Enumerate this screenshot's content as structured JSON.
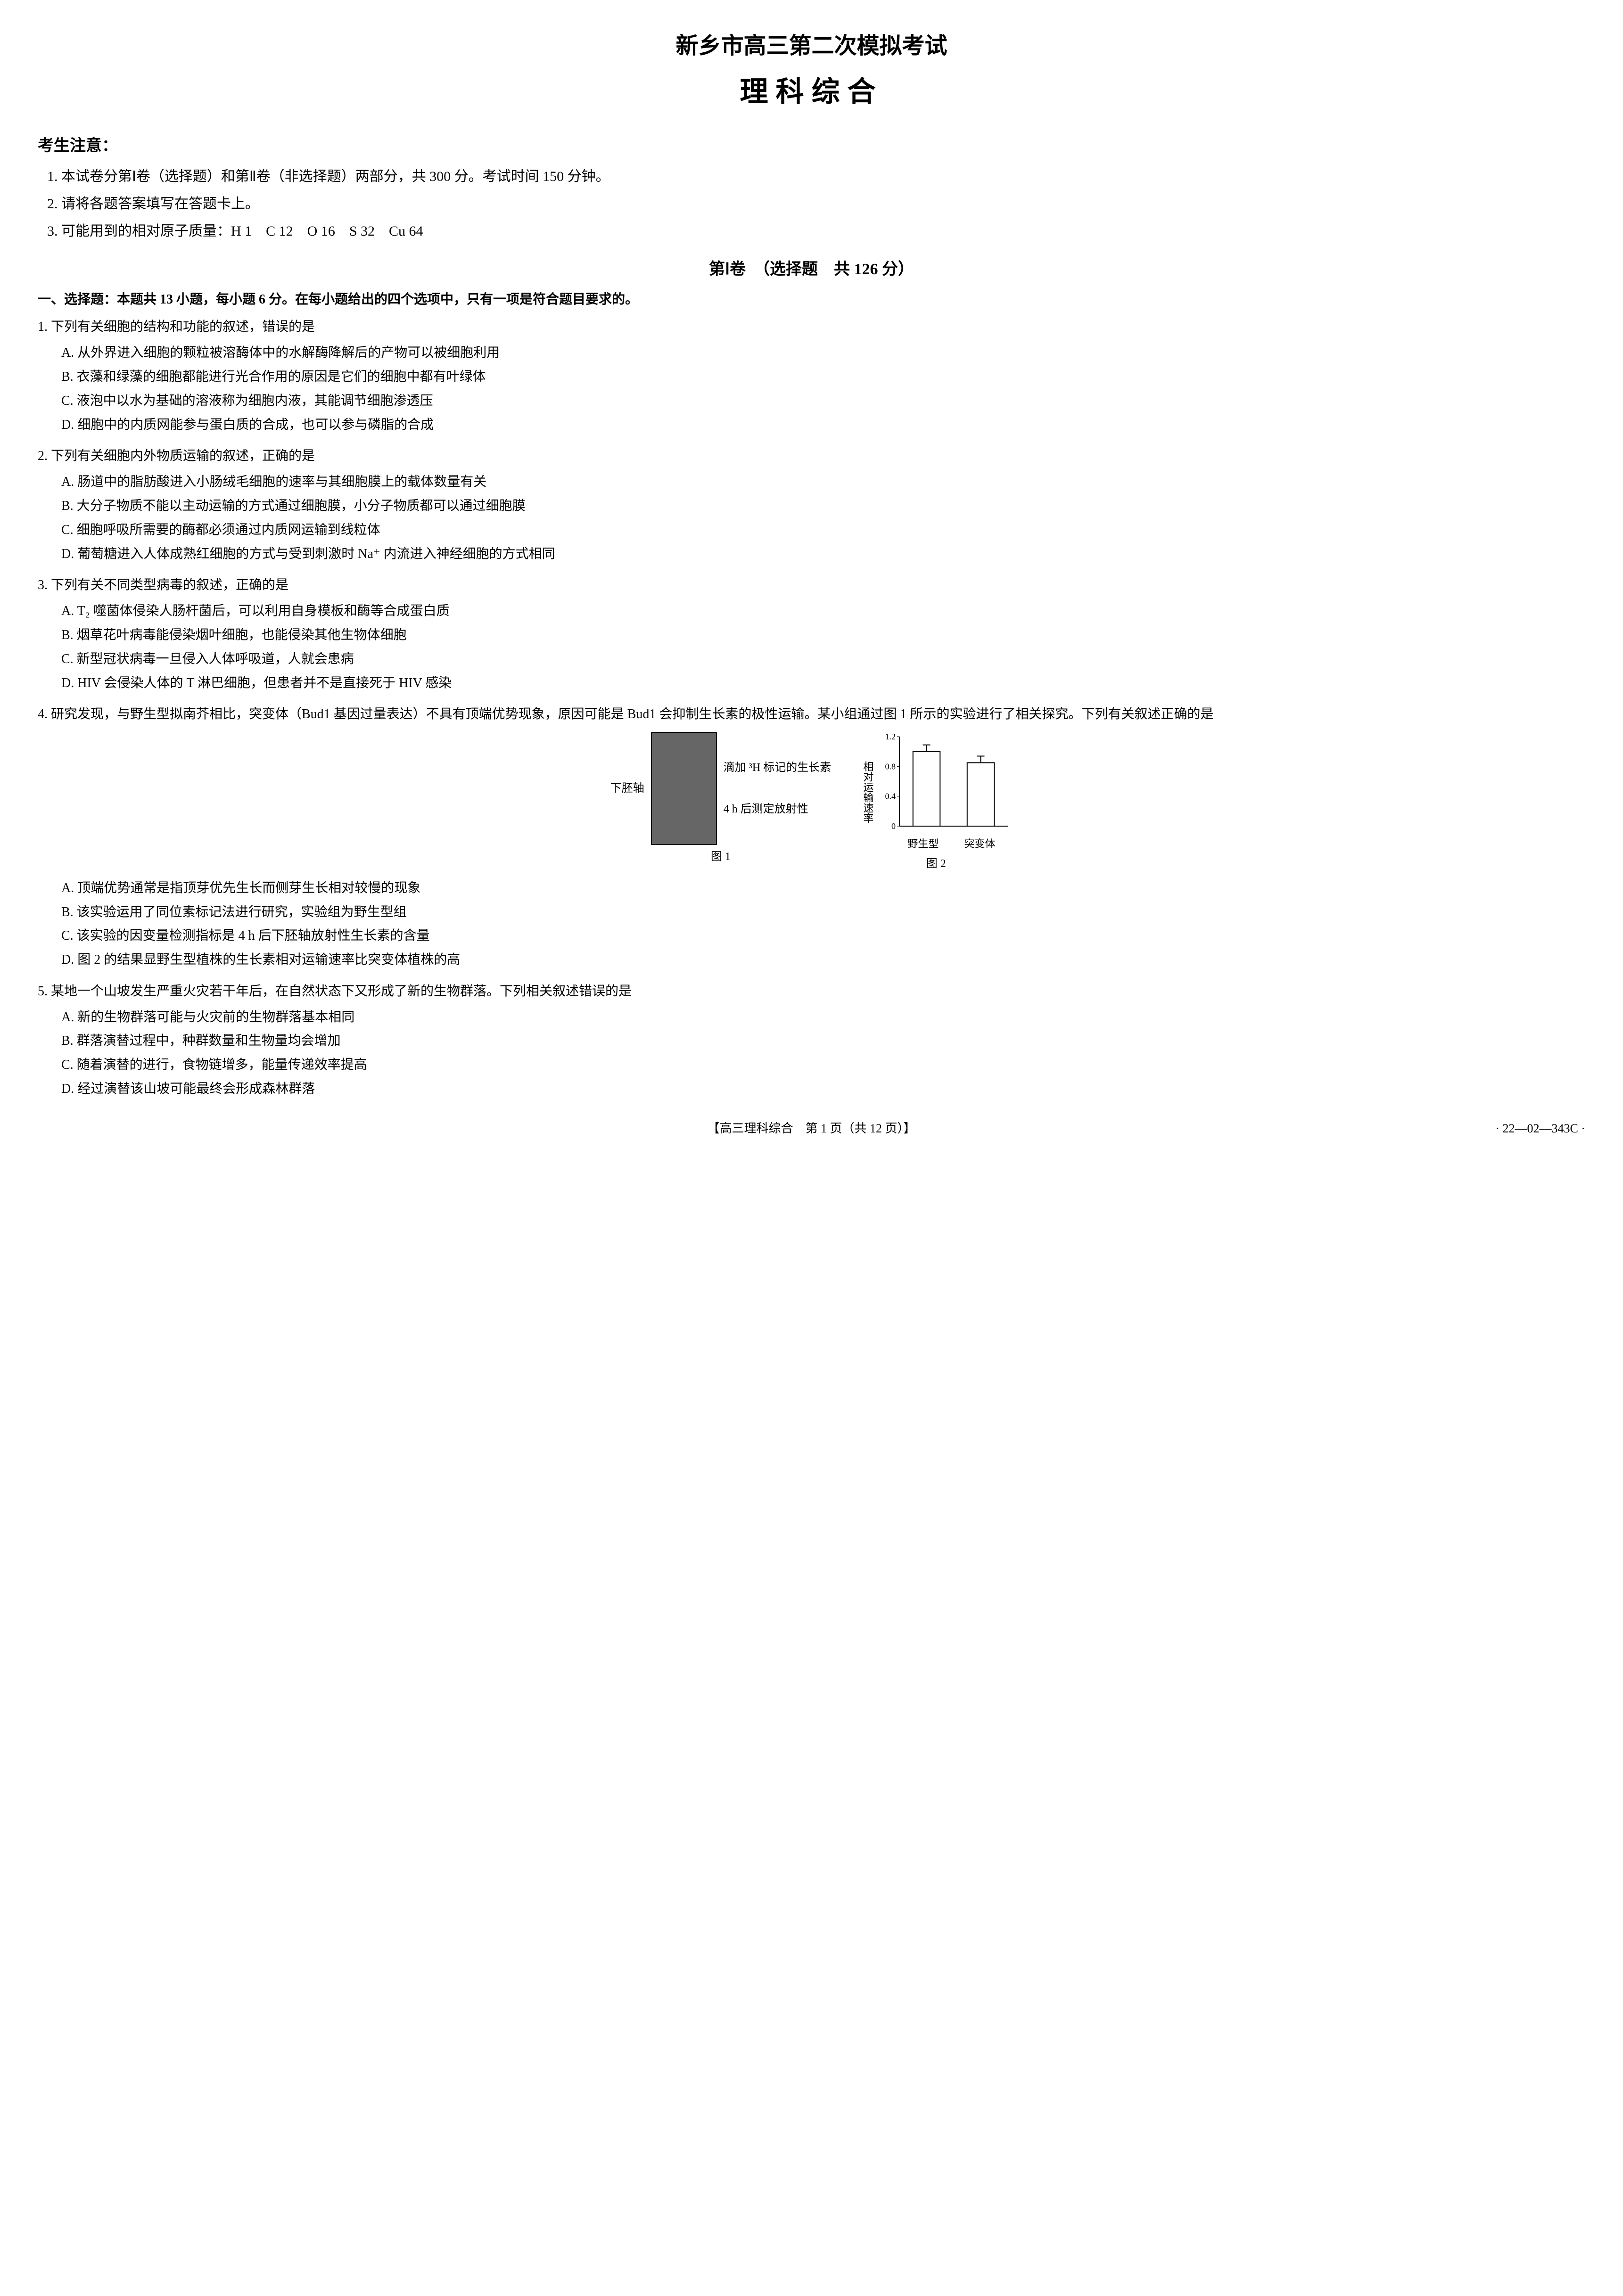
{
  "header": {
    "title_main": "新乡市高三第二次模拟考试",
    "title_sub": "理科综合"
  },
  "notices": {
    "header": "考生注意：",
    "items": [
      "1. 本试卷分第Ⅰ卷（选择题）和第Ⅱ卷（非选择题）两部分，共 300 分。考试时间 150 分钟。",
      "2. 请将各题答案填写在答题卡上。",
      "3. 可能用到的相对原子质量：H 1　C 12　O 16　S 32　Cu 64"
    ]
  },
  "section1": {
    "title": "第Ⅰ卷　（选择题　共 126 分）",
    "instruction": "一、选择题：本题共 13 小题，每小题 6 分。在每小题给出的四个选项中，只有一项是符合题目要求的。"
  },
  "questions": [
    {
      "stem": "1. 下列有关细胞的结构和功能的叙述，错误的是",
      "options": [
        "A. 从外界进入细胞的颗粒被溶酶体中的水解酶降解后的产物可以被细胞利用",
        "B. 衣藻和绿藻的细胞都能进行光合作用的原因是它们的细胞中都有叶绿体",
        "C. 液泡中以水为基础的溶液称为细胞内液，其能调节细胞渗透压",
        "D. 细胞中的内质网能参与蛋白质的合成，也可以参与磷脂的合成"
      ]
    },
    {
      "stem": "2. 下列有关细胞内外物质运输的叙述，正确的是",
      "options": [
        "A. 肠道中的脂肪酸进入小肠绒毛细胞的速率与其细胞膜上的载体数量有关",
        "B. 大分子物质不能以主动运输的方式通过细胞膜，小分子物质都可以通过细胞膜",
        "C. 细胞呼吸所需要的酶都必须通过内质网运输到线粒体",
        "D. 葡萄糖进入人体成熟红细胞的方式与受到刺激时 Na⁺ 内流进入神经细胞的方式相同"
      ]
    },
    {
      "stem": "3. 下列有关不同类型病毒的叙述，正确的是",
      "options": [
        "A. T₂ 噬菌体侵染人肠杆菌后，可以利用自身模板和酶等合成蛋白质",
        "B. 烟草花叶病毒能侵染烟叶细胞，也能侵染其他生物体细胞",
        "C. 新型冠状病毒一旦侵入人体呼吸道，人就会患病",
        "D. HIV 会侵染人体的 T 淋巴细胞，但患者并不是直接死于 HIV 感染"
      ]
    },
    {
      "stem": "4. 研究发现，与野生型拟南芥相比，突变体（Bud1 基因过量表达）不具有顶端优势现象，原因可能是 Bud1 会抑制生长素的极性运输。某小组通过图 1 所示的实验进行了相关探究。下列有关叙述正确的是",
      "options": [
        "A. 顶端优势通常是指顶芽优先生长而侧芽生长相对较慢的现象",
        "B. 该实验运用了同位素标记法进行研究，实验组为野生型组",
        "C. 该实验的因变量检测指标是 4 h 后下胚轴放射性生长素的含量",
        "D. 图 2 的结果显野生型植株的生长素相对运输速率比突变体植株的高"
      ],
      "fig1": {
        "left_label": "下胚轴",
        "right_labels": [
          "滴加 ³H 标记的生长素",
          "4 h 后测定放射性"
        ],
        "caption": "图 1"
      },
      "fig2": {
        "ylabel": "相对运输速率",
        "ymax": 1.2,
        "yticks": [
          0,
          0.4,
          0.8,
          1.2
        ],
        "categories": [
          "野生型",
          "突变体"
        ],
        "values": [
          1.0,
          0.85
        ],
        "bar_color": "#ffffff",
        "bar_border": "#000000",
        "axis_color": "#000000",
        "caption": "图 2"
      }
    },
    {
      "stem": "5. 某地一个山坡发生严重火灾若干年后，在自然状态下又形成了新的生物群落。下列相关叙述错误的是",
      "options": [
        "A. 新的生物群落可能与火灾前的生物群落基本相同",
        "B. 群落演替过程中，种群数量和生物量均会增加",
        "C. 随着演替的进行，食物链增多，能量传递效率提高",
        "D. 经过演替该山坡可能最终会形成森林群落"
      ]
    }
  ],
  "footer": {
    "page_info": "【高三理科综合　第 1 页（共 12 页）】",
    "code": "· 22—02—343C ·"
  }
}
